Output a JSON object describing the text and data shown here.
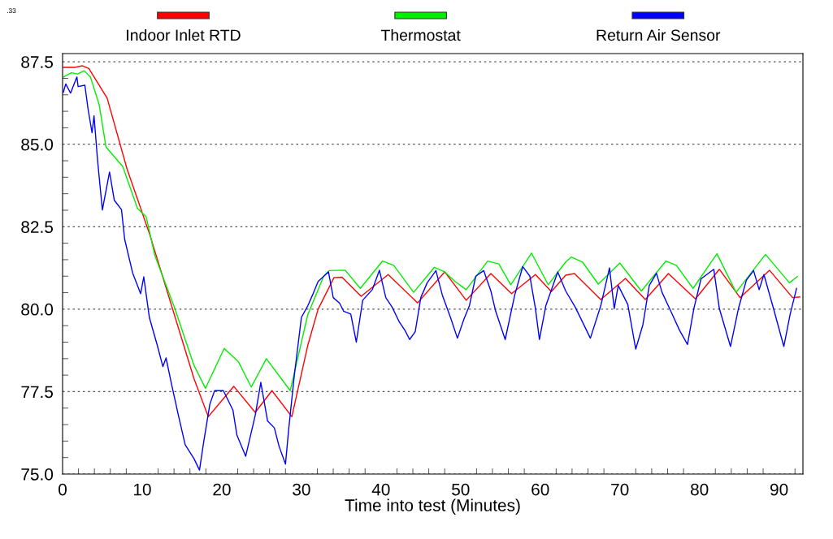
{
  "chart_data": {
    "type": "line",
    "xlabel": "Time into test (Minutes)",
    "annotations": [
      ".33"
    ],
    "xlim": [
      0,
      93
    ],
    "ylim": [
      75,
      87.75
    ],
    "xticks": [
      0,
      10,
      20,
      30,
      40,
      50,
      60,
      70,
      80,
      90
    ],
    "yticks": [
      {
        "value": 75,
        "label": "75.0"
      },
      {
        "value": 77.5,
        "label": "77.5"
      },
      {
        "value": 80,
        "label": "80.0"
      },
      {
        "value": 82.5,
        "label": "82.5"
      },
      {
        "value": 85,
        "label": "85.0"
      },
      {
        "value": 87.5,
        "label": "87.5"
      }
    ],
    "grid": "y",
    "legend": "top",
    "marker": "none",
    "line_style": "solid",
    "series": [
      {
        "name": "Indoor Inlet RTD",
        "color": "#ff0000",
        "x": [
          0.1,
          1.5,
          2.5,
          3.3,
          5.6,
          8.1,
          10.9,
          13.7,
          16.5,
          18.3,
          21.5,
          24.2,
          26.3,
          28.8,
          30.8,
          32.1,
          34.1,
          35.1,
          37.5,
          40.9,
          44.6,
          48.0,
          50.7,
          53.8,
          56.4,
          59.4,
          61.4,
          63.2,
          64.3,
          67.6,
          70.7,
          73.2,
          76.1,
          79.5,
          82.5,
          85.1,
          88.8,
          91.7,
          92.6
        ],
        "values": [
          87.33,
          87.33,
          87.38,
          87.3,
          86.4,
          84.25,
          82.3,
          80.1,
          77.9,
          76.74,
          77.66,
          76.87,
          77.53,
          76.74,
          78.9,
          80.0,
          80.96,
          80.97,
          80.39,
          81.05,
          80.19,
          81.13,
          80.27,
          81.08,
          80.47,
          81.05,
          80.53,
          81.03,
          81.08,
          80.29,
          80.93,
          80.29,
          81.08,
          80.31,
          81.21,
          80.35,
          81.18,
          80.35,
          80.37
        ]
      },
      {
        "name": "Thermostat",
        "color": "#00ee00",
        "x": [
          0.1,
          1.1,
          1.9,
          2.7,
          3.5,
          4.6,
          5.45,
          7.55,
          9.4,
          10.5,
          11.6,
          14.0,
          16.5,
          17.95,
          20.3,
          22.1,
          23.7,
          25.6,
          28.6,
          30.8,
          32.8,
          33.5,
          35.5,
          37.4,
          40.2,
          41.6,
          44.1,
          46.7,
          48.0,
          49.3,
          50.7,
          53.4,
          54.8,
          56.3,
          58.9,
          61.0,
          63.2,
          63.9,
          65.3,
          67.3,
          70.0,
          72.7,
          75.8,
          77.1,
          79.2,
          82.2,
          84.6,
          88.3,
          91.3,
          92.3
        ],
        "values": [
          87.04,
          87.17,
          87.13,
          87.23,
          87.04,
          86.2,
          84.92,
          84.33,
          83.06,
          82.8,
          81.62,
          80.09,
          78.3,
          77.6,
          78.81,
          78.4,
          77.64,
          78.5,
          77.53,
          79.83,
          81.0,
          81.17,
          81.18,
          80.63,
          81.46,
          81.33,
          80.51,
          81.27,
          81.13,
          80.84,
          80.59,
          81.46,
          81.37,
          80.74,
          81.7,
          80.74,
          81.43,
          81.58,
          81.43,
          80.76,
          81.4,
          80.55,
          81.46,
          81.33,
          80.63,
          81.68,
          80.51,
          81.66,
          80.8,
          80.99
        ]
      },
      {
        "name": "Return Air Sensor",
        "color": "#0000ff",
        "x": [
          0.1,
          0.4,
          1.0,
          1.8,
          1.95,
          2.8,
          3.2,
          3.7,
          3.95,
          4.4,
          5.0,
          5.9,
          6.5,
          7.4,
          7.8,
          8.8,
          9.8,
          10.2,
          10.9,
          11.9,
          12.6,
          13.0,
          13.7,
          14.55,
          15.4,
          16.5,
          17.2,
          17.7,
          18.5,
          19.1,
          20.2,
          21.4,
          21.9,
          23.0,
          24.2,
          24.9,
          25.75,
          26.6,
          27.2,
          28.0,
          28.4,
          29.1,
          30.0,
          30.8,
          31.4,
          32.1,
          33.4,
          34.0,
          34.8,
          35.3,
          36.2,
          36.9,
          37.7,
          38.9,
          39.8,
          40.6,
          41.4,
          42.3,
          43.0,
          43.6,
          44.3,
          45.0,
          45.8,
          46.9,
          47.7,
          48.7,
          49.6,
          50.4,
          51.1,
          51.9,
          52.9,
          53.8,
          54.4,
          55.6,
          56.8,
          57.8,
          58.7,
          59.4,
          59.9,
          60.7,
          62.2,
          63.2,
          64.4,
          66.3,
          67.6,
          68.7,
          69.3,
          69.8,
          71.0,
          72.0,
          72.9,
          73.7,
          74.6,
          75.3,
          76.4,
          77.5,
          78.5,
          79.3,
          80.2,
          81.8,
          82.5,
          83.9,
          84.9,
          85.9,
          86.8,
          87.5,
          88.1,
          89.3,
          90.6,
          91.4,
          92.2
        ],
        "values": [
          86.58,
          86.83,
          86.55,
          87.04,
          86.75,
          86.79,
          86.07,
          85.35,
          85.86,
          84.5,
          83.01,
          84.16,
          83.3,
          83.02,
          82.12,
          81.1,
          80.47,
          80.98,
          79.75,
          78.9,
          78.26,
          78.52,
          77.71,
          76.78,
          75.89,
          75.47,
          75.12,
          75.93,
          77.12,
          77.53,
          77.53,
          76.94,
          76.18,
          75.54,
          76.78,
          77.78,
          76.61,
          76.4,
          75.84,
          75.3,
          76.35,
          77.97,
          79.75,
          80.1,
          80.43,
          80.84,
          81.13,
          80.35,
          80.18,
          79.94,
          79.85,
          79.0,
          80.27,
          80.59,
          81.18,
          80.35,
          80.06,
          79.61,
          79.36,
          79.08,
          79.32,
          80.35,
          80.8,
          81.17,
          80.43,
          79.77,
          79.12,
          79.69,
          80.1,
          81.0,
          81.17,
          80.55,
          79.94,
          79.08,
          80.43,
          81.29,
          81.0,
          80.02,
          79.08,
          80.1,
          81.13,
          80.55,
          80.06,
          79.12,
          80.1,
          81.25,
          80.02,
          80.72,
          80.14,
          78.79,
          79.53,
          80.72,
          81.09,
          80.51,
          79.94,
          79.36,
          78.93,
          80.02,
          80.92,
          81.21,
          80.02,
          78.87,
          80.02,
          80.88,
          81.17,
          80.59,
          81.05,
          80.02,
          78.87,
          79.85,
          80.63
        ]
      }
    ]
  }
}
